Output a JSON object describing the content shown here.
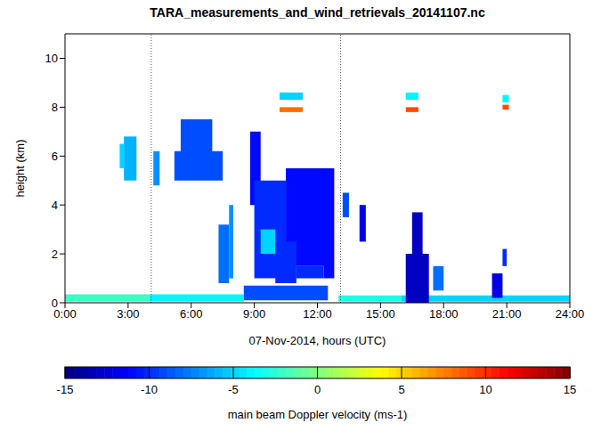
{
  "chart_data": {
    "type": "heatmap",
    "title": "TARA_measurements_and_wind_retrievals_20141107.nc",
    "x_label": "07-Nov-2014, hours (UTC)",
    "y_label": "height (km)",
    "xlim": [
      0,
      24
    ],
    "xticks": [
      {
        "value": 0,
        "label": "0:00"
      },
      {
        "value": 3,
        "label": "3:00"
      },
      {
        "value": 6,
        "label": "6:00"
      },
      {
        "value": 9,
        "label": "9:00"
      },
      {
        "value": 12,
        "label": "12:00"
      },
      {
        "value": 15,
        "label": "15:00"
      },
      {
        "value": 18,
        "label": "18:00"
      },
      {
        "value": 21,
        "label": "21:00"
      },
      {
        "value": 24,
        "label": "24:00"
      }
    ],
    "ylim": [
      0,
      11
    ],
    "yticks": [
      0,
      2,
      4,
      6,
      8,
      10
    ],
    "vertical_lines": [
      4.1,
      13.1
    ],
    "colorbar": {
      "label": "main beam Doppler velocity (ms-1)",
      "range": [
        -15,
        15
      ],
      "ticks": [
        -15,
        -10,
        -5,
        0,
        5,
        10,
        15
      ]
    },
    "cells": [
      {
        "x": [
          0,
          4
        ],
        "y": [
          0.05,
          0.35
        ],
        "value": -2
      },
      {
        "x": [
          4,
          8.5
        ],
        "y": [
          0.05,
          0.35
        ],
        "value": -4
      },
      {
        "x": [
          8.5,
          12.5
        ],
        "y": [
          0.1,
          0.7
        ],
        "value": -9
      },
      {
        "x": [
          13,
          16
        ],
        "y": [
          0.05,
          0.3
        ],
        "value": -3
      },
      {
        "x": [
          16,
          24
        ],
        "y": [
          0.05,
          0.3
        ],
        "value": -5
      },
      {
        "x": [
          2.8,
          3.4
        ],
        "y": [
          5,
          6.8
        ],
        "value": -6
      },
      {
        "x": [
          2.6,
          2.8
        ],
        "y": [
          5.5,
          6.5
        ],
        "value": -5
      },
      {
        "x": [
          4.2,
          4.5
        ],
        "y": [
          4.8,
          6.2
        ],
        "value": -7
      },
      {
        "x": [
          5.5,
          7
        ],
        "y": [
          6,
          7.5
        ],
        "value": -9
      },
      {
        "x": [
          5.2,
          7.5
        ],
        "y": [
          5,
          6.2
        ],
        "value": -9
      },
      {
        "x": [
          7.3,
          7.8
        ],
        "y": [
          0.8,
          3.2
        ],
        "value": -8
      },
      {
        "x": [
          7.8,
          8
        ],
        "y": [
          1,
          4
        ],
        "value": -7
      },
      {
        "x": [
          8.8,
          9.3
        ],
        "y": [
          4,
          7
        ],
        "value": -11
      },
      {
        "x": [
          9,
          10.5
        ],
        "y": [
          1,
          5
        ],
        "value": -10
      },
      {
        "x": [
          9.3,
          10
        ],
        "y": [
          2,
          3
        ],
        "value": -5
      },
      {
        "x": [
          10.5,
          12.6
        ],
        "y": [
          1.5,
          5.5
        ],
        "value": -11
      },
      {
        "x": [
          10,
          11
        ],
        "y": [
          0.8,
          2.5
        ],
        "value": -10
      },
      {
        "x": [
          11,
          12.3
        ],
        "y": [
          1,
          1.5
        ],
        "value": -10
      },
      {
        "x": [
          12.3,
          12.8
        ],
        "y": [
          1,
          5.5
        ],
        "value": -11
      },
      {
        "x": [
          13.2,
          13.5
        ],
        "y": [
          3.5,
          4.5
        ],
        "value": -9
      },
      {
        "x": [
          14,
          14.3
        ],
        "y": [
          2.5,
          4
        ],
        "value": -12
      },
      {
        "x": [
          16.2,
          17.3
        ],
        "y": [
          0,
          2
        ],
        "value": -13
      },
      {
        "x": [
          16.5,
          17
        ],
        "y": [
          2,
          3.7
        ],
        "value": -13
      },
      {
        "x": [
          17.5,
          18
        ],
        "y": [
          0.5,
          1.5
        ],
        "value": -8
      },
      {
        "x": [
          20.3,
          20.8
        ],
        "y": [
          0.2,
          1.2
        ],
        "value": -12
      },
      {
        "x": [
          20.8,
          21
        ],
        "y": [
          1.5,
          2.2
        ],
        "value": -10
      },
      {
        "x": [
          10.2,
          11.3
        ],
        "y": [
          8.3,
          8.6
        ],
        "value": -5
      },
      {
        "x": [
          10.2,
          11.3
        ],
        "y": [
          7.8,
          8
        ],
        "value": 8
      },
      {
        "x": [
          16.2,
          16.8
        ],
        "y": [
          8.3,
          8.6
        ],
        "value": -4
      },
      {
        "x": [
          16.2,
          16.8
        ],
        "y": [
          7.8,
          8
        ],
        "value": 9
      },
      {
        "x": [
          20.8,
          21.1
        ],
        "y": [
          8.2,
          8.5
        ],
        "value": -4
      },
      {
        "x": [
          20.8,
          21.1
        ],
        "y": [
          7.9,
          8.1
        ],
        "value": 9
      }
    ]
  }
}
